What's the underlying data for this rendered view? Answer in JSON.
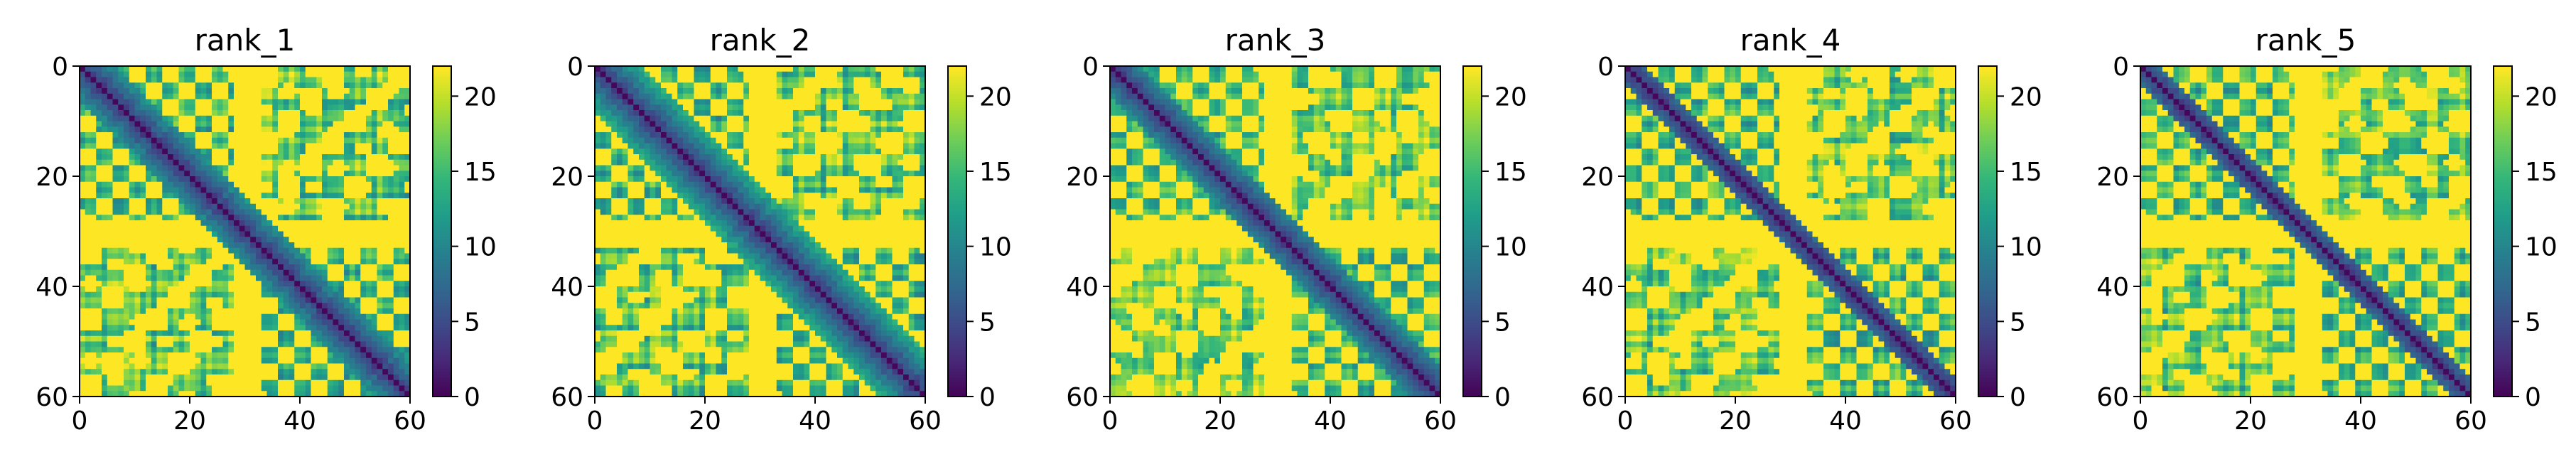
{
  "chart_data": [
    {
      "type": "heatmap",
      "title": "rank_1",
      "xlabel": "",
      "ylabel": "",
      "xlim": [
        0,
        60
      ],
      "ylim": [
        60,
        0
      ],
      "xticks": [
        "0",
        "20",
        "40",
        "60"
      ],
      "yticks": [
        "0",
        "20",
        "40",
        "60"
      ],
      "colorbar": {
        "range": [
          0,
          22
        ],
        "ticks": [
          "0",
          "5",
          "10",
          "15",
          "20"
        ]
      },
      "colormap": "viridis",
      "variant": 1
    },
    {
      "type": "heatmap",
      "title": "rank_2",
      "xlabel": "",
      "ylabel": "",
      "xlim": [
        0,
        60
      ],
      "ylim": [
        60,
        0
      ],
      "xticks": [
        "0",
        "20",
        "40",
        "60"
      ],
      "yticks": [
        "0",
        "20",
        "40",
        "60"
      ],
      "colorbar": {
        "range": [
          0,
          22
        ],
        "ticks": [
          "0",
          "5",
          "10",
          "15",
          "20"
        ]
      },
      "colormap": "viridis",
      "variant": 2
    },
    {
      "type": "heatmap",
      "title": "rank_3",
      "xlabel": "",
      "ylabel": "",
      "xlim": [
        0,
        60
      ],
      "ylim": [
        60,
        0
      ],
      "xticks": [
        "0",
        "20",
        "40",
        "60"
      ],
      "yticks": [
        "0",
        "20",
        "40",
        "60"
      ],
      "colorbar": {
        "range": [
          0,
          22
        ],
        "ticks": [
          "0",
          "5",
          "10",
          "15",
          "20"
        ]
      },
      "colormap": "viridis",
      "variant": 3
    },
    {
      "type": "heatmap",
      "title": "rank_4",
      "xlabel": "",
      "ylabel": "",
      "xlim": [
        0,
        60
      ],
      "ylim": [
        60,
        0
      ],
      "xticks": [
        "0",
        "20",
        "40",
        "60"
      ],
      "yticks": [
        "0",
        "20",
        "40",
        "60"
      ],
      "colorbar": {
        "range": [
          0,
          22
        ],
        "ticks": [
          "0",
          "5",
          "10",
          "15",
          "20"
        ]
      },
      "colormap": "viridis",
      "variant": 4
    },
    {
      "type": "heatmap",
      "title": "rank_5",
      "xlabel": "",
      "ylabel": "",
      "xlim": [
        0,
        60
      ],
      "ylim": [
        60,
        0
      ],
      "xticks": [
        "0",
        "20",
        "40",
        "60"
      ],
      "yticks": [
        "0",
        "20",
        "40",
        "60"
      ],
      "colorbar": {
        "range": [
          0,
          22
        ],
        "ticks": [
          "0",
          "5",
          "10",
          "15",
          "20"
        ]
      },
      "colormap": "viridis",
      "variant": 5
    }
  ]
}
